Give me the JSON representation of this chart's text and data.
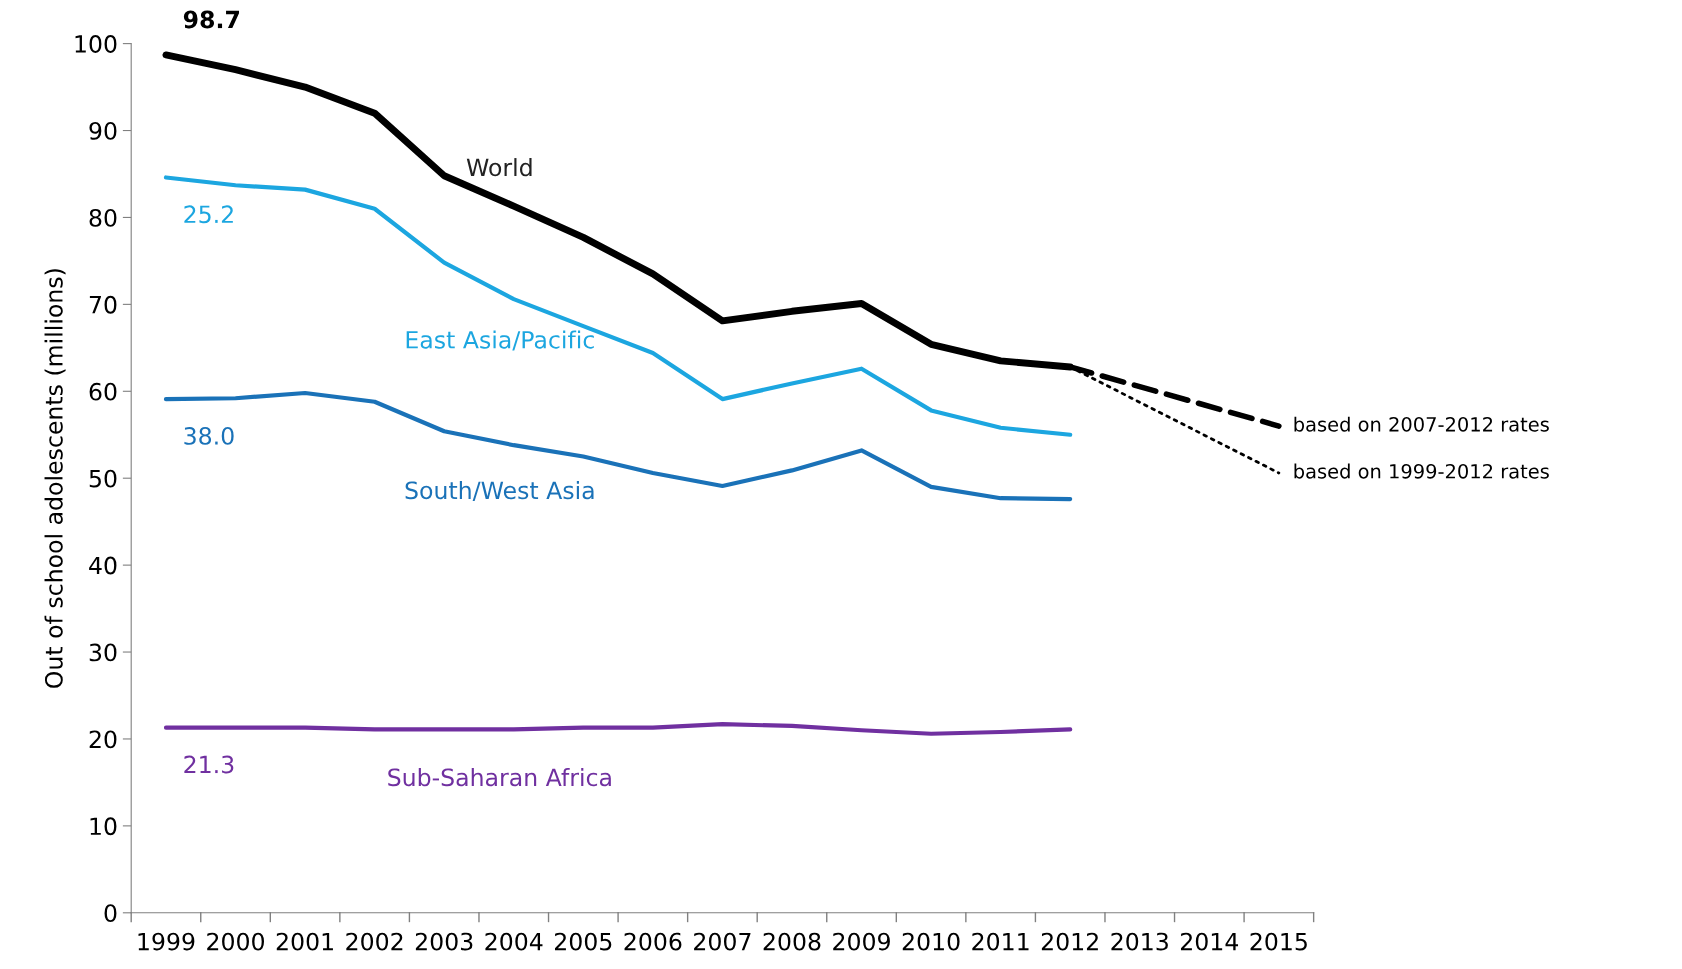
{
  "chart_data": {
    "type": "line",
    "ylabel": "Out of school adolescents (millions)",
    "categories": [
      "1999",
      "2000",
      "2001",
      "2002",
      "2003",
      "2004",
      "2005",
      "2006",
      "2007",
      "2008",
      "2009",
      "2010",
      "2011",
      "2012",
      "2013",
      "2014",
      "2015"
    ],
    "series": [
      {
        "name": "World",
        "color": "#000000",
        "values": [
          98.7,
          97.0,
          95.0,
          92.0,
          84.8,
          81.3,
          77.7,
          73.5,
          68.1,
          69.2,
          70.1,
          65.4,
          63.5,
          62.8,
          null,
          null,
          null
        ]
      },
      {
        "name": "East Asia/Pacific",
        "color": "#1ca6e0",
        "values": [
          84.6,
          83.7,
          83.2,
          81.0,
          74.8,
          70.6,
          67.5,
          64.4,
          59.1,
          60.9,
          62.6,
          57.8,
          55.8,
          55.0,
          null,
          null,
          null
        ]
      },
      {
        "name": "South/West Asia",
        "color": "#1a72b8",
        "values": [
          59.1,
          59.2,
          59.8,
          58.8,
          55.4,
          53.8,
          52.5,
          50.6,
          49.1,
          50.9,
          53.2,
          49.0,
          47.7,
          47.6,
          null,
          null,
          null
        ]
      },
      {
        "name": "Sub-Saharan Africa",
        "color": "#7030a0",
        "values": [
          21.3,
          21.3,
          21.3,
          21.1,
          21.1,
          21.1,
          21.3,
          21.3,
          21.7,
          21.5,
          21.0,
          20.6,
          20.8,
          21.1,
          null,
          null,
          null
        ]
      },
      {
        "name": "based on 2007-2012 rates",
        "color": "#000000",
        "line_style": "dashed",
        "values": [
          null,
          null,
          null,
          null,
          null,
          null,
          null,
          null,
          null,
          null,
          null,
          null,
          null,
          62.8,
          null,
          null,
          56.0
        ]
      },
      {
        "name": "based on 1999-2012 rates",
        "color": "#000000",
        "line_style": "dotted",
        "values": [
          null,
          null,
          null,
          null,
          null,
          null,
          null,
          null,
          null,
          null,
          null,
          null,
          null,
          62.8,
          null,
          null,
          50.6
        ]
      }
    ],
    "annotations": [
      "98.7",
      "25.2",
      "38.0",
      "21.3"
    ],
    "ylim": [
      0,
      100
    ],
    "yticks": [
      0,
      10,
      20,
      30,
      40,
      50,
      60,
      70,
      80,
      90,
      100
    ],
    "grid": false,
    "legend": false,
    "marker": "none",
    "line_style": "solid"
  }
}
